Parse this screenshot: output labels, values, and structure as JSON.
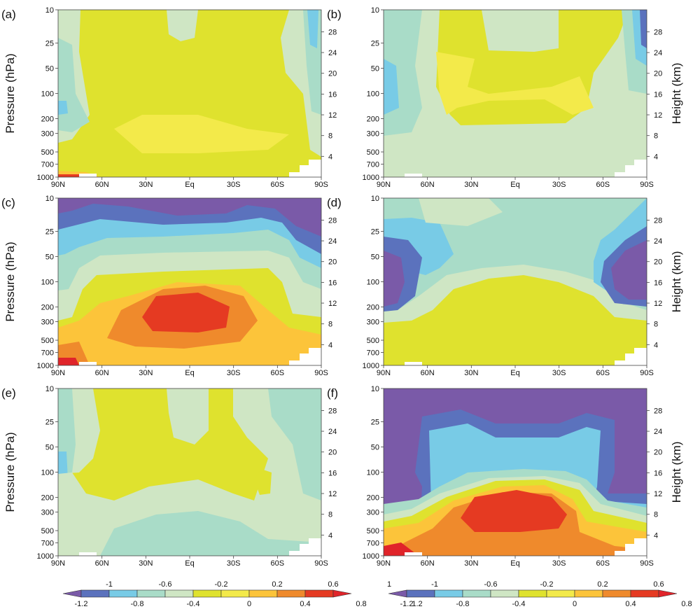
{
  "chart_data": {
    "type": "heatmap",
    "description_units": "pressure-latitude cross sections (contour plots)",
    "axes": {
      "x": {
        "tick_labels": [
          "90N",
          "60N",
          "30N",
          "Eq",
          "30S",
          "60S",
          "90S"
        ],
        "range": [
          90,
          -90
        ],
        "units": "latitude"
      },
      "y_left": {
        "label": "Pressure (hPa)",
        "tick_labels": [
          "10",
          "25",
          "50",
          "100",
          "200",
          "300",
          "500",
          "700",
          "1000"
        ],
        "scale": "log",
        "range": [
          1000,
          10
        ]
      },
      "y_right": {
        "label": "Height (km)",
        "tick_labels": [
          "4",
          "8",
          "12",
          "16",
          "20",
          "24",
          "28"
        ]
      }
    },
    "panels": [
      {
        "label": "(a)"
      },
      {
        "label": "(b)"
      },
      {
        "label": "(c)"
      },
      {
        "label": "(d)"
      },
      {
        "label": "(e)"
      },
      {
        "label": "(f)"
      }
    ],
    "colorbar": {
      "levels_upper": [
        "-1",
        "-0.6",
        "-0.2",
        "0.2",
        "0.6",
        "1"
      ],
      "levels_lower": [
        "-1.2",
        "-0.8",
        "-0.4",
        "0",
        "0.4",
        "0.8",
        "1.2"
      ],
      "colors": [
        "#7a5aa8",
        "#5b72bd",
        "#78cbe6",
        "#a9dcc8",
        "#cfe6c4",
        "#dfe22e",
        "#f3ea4a",
        "#fcc43a",
        "#ef8a2c",
        "#e53a22",
        "#e0242a"
      ]
    }
  }
}
